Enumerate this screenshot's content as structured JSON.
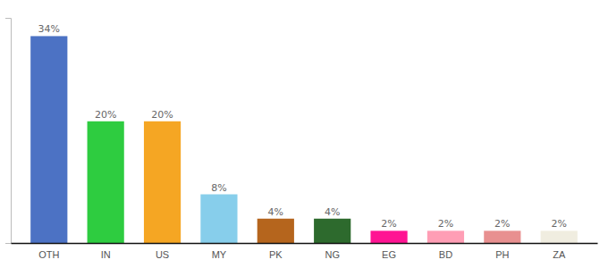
{
  "chart_data": {
    "type": "bar",
    "categories": [
      "OTH",
      "IN",
      "US",
      "MY",
      "PK",
      "NG",
      "EG",
      "BD",
      "PH",
      "ZA"
    ],
    "values": [
      34,
      20,
      20,
      8,
      4,
      4,
      2,
      2,
      2,
      2
    ],
    "value_labels": [
      "34%",
      "20%",
      "20%",
      "8%",
      "4%",
      "4%",
      "2%",
      "2%",
      "2%",
      "2%"
    ],
    "colors": [
      "#4c72c4",
      "#2ecc40",
      "#f5a623",
      "#87ceeb",
      "#b5651d",
      "#2d6a2d",
      "#ff1493",
      "#ff9eb5",
      "#e89090",
      "#f0ede0"
    ],
    "ylim": [
      0,
      37
    ],
    "data_labels": true,
    "tick_labels": "x",
    "grid": false
  }
}
